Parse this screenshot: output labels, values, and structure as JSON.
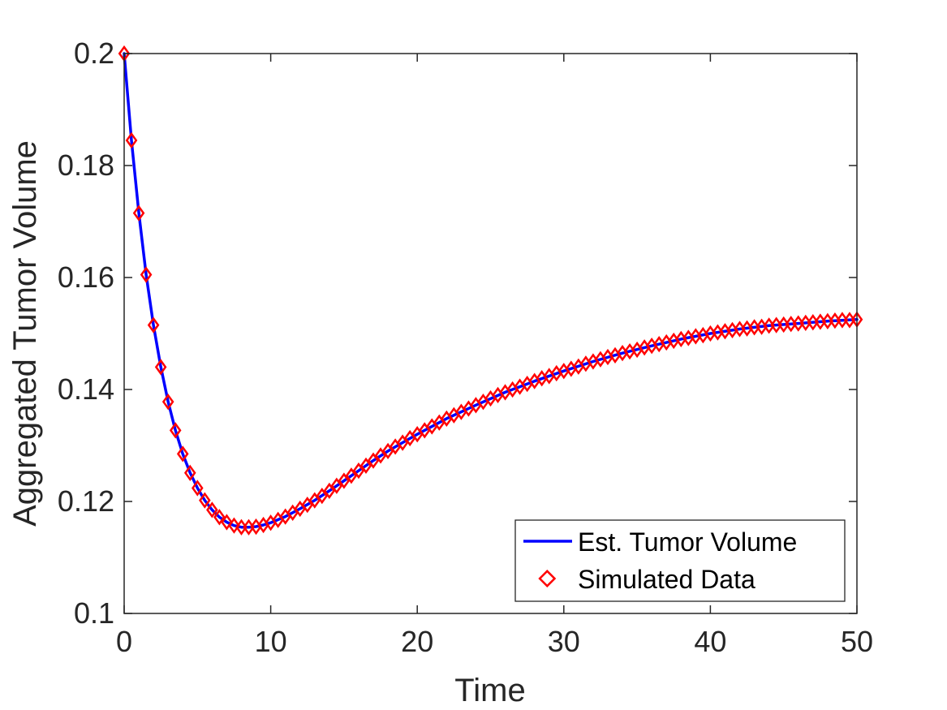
{
  "chart_data": {
    "type": "line",
    "title": "",
    "xlabel": "Time",
    "ylabel": "Aggregated Tumor Volume",
    "xlim": [
      0,
      50
    ],
    "ylim": [
      0.1,
      0.2
    ],
    "xticks": [
      "0",
      "10",
      "20",
      "30",
      "40",
      "50"
    ],
    "yticks": [
      "0.1",
      "0.12",
      "0.14",
      "0.16",
      "0.18",
      "0.2"
    ],
    "grid": false,
    "legend_position": "bottom-right",
    "series": [
      {
        "name": "Est. Tumor Volume",
        "style": "line",
        "color": "#0000ff",
        "x": [
          0,
          0.5,
          1,
          1.5,
          2,
          2.5,
          3,
          3.5,
          4,
          4.5,
          5,
          5.5,
          6,
          6.5,
          7,
          7.5,
          8,
          8.5,
          9,
          9.5,
          10,
          11,
          12,
          13,
          14,
          15,
          16,
          17,
          18,
          19,
          20,
          22,
          24,
          26,
          28,
          30,
          32,
          34,
          36,
          38,
          40,
          42,
          44,
          46,
          48,
          50
        ],
        "y": [
          0.2,
          0.1845,
          0.1715,
          0.1605,
          0.1515,
          0.144,
          0.1378,
          0.1327,
          0.1285,
          0.1251,
          0.1224,
          0.1202,
          0.1185,
          0.1172,
          0.1163,
          0.1157,
          0.1154,
          0.1154,
          0.1155,
          0.1158,
          0.1162,
          0.1173,
          0.1187,
          0.1202,
          0.1219,
          0.1237,
          0.1255,
          0.1273,
          0.129,
          0.1305,
          0.132,
          0.1348,
          0.1372,
          0.1395,
          0.1415,
          0.1433,
          0.145,
          0.1465,
          0.1478,
          0.149,
          0.15,
          0.1508,
          0.1514,
          0.1518,
          0.1522,
          0.1525
        ]
      },
      {
        "name": "Simulated Data",
        "style": "marker-diamond",
        "color": "#ff0000",
        "x": [
          0,
          0.5,
          1,
          1.5,
          2,
          2.5,
          3,
          3.5,
          4,
          4.5,
          5,
          5.5,
          6,
          6.5,
          7,
          7.5,
          8,
          8.5,
          9,
          9.5,
          10,
          10.5,
          11,
          11.5,
          12,
          12.5,
          13,
          13.5,
          14,
          14.5,
          15,
          15.5,
          16,
          16.5,
          17,
          17.5,
          18,
          18.5,
          19,
          19.5,
          20,
          20.5,
          21,
          21.5,
          22,
          22.5,
          23,
          23.5,
          24,
          24.5,
          25,
          25.5,
          26,
          26.5,
          27,
          27.5,
          28,
          28.5,
          29,
          29.5,
          30,
          30.5,
          31,
          31.5,
          32,
          32.5,
          33,
          33.5,
          34,
          34.5,
          35,
          35.5,
          36,
          36.5,
          37,
          37.5,
          38,
          38.5,
          39,
          39.5,
          40,
          40.5,
          41,
          41.5,
          42,
          42.5,
          43,
          43.5,
          44,
          44.5,
          45,
          45.5,
          46,
          46.5,
          47,
          47.5,
          48,
          48.5,
          49,
          49.5,
          50
        ],
        "y": [
          0.2,
          0.1845,
          0.1715,
          0.1605,
          0.1515,
          0.144,
          0.1378,
          0.1327,
          0.1285,
          0.1251,
          0.1224,
          0.1202,
          0.1185,
          0.1172,
          0.1163,
          0.1157,
          0.1154,
          0.1154,
          0.1155,
          0.1158,
          0.1162,
          0.1167,
          0.1173,
          0.118,
          0.1187,
          0.1194,
          0.1202,
          0.121,
          0.1219,
          0.1228,
          0.1237,
          0.1246,
          0.1255,
          0.1264,
          0.1273,
          0.1282,
          0.129,
          0.1298,
          0.1305,
          0.1313,
          0.132,
          0.1327,
          0.1334,
          0.1341,
          0.1348,
          0.1354,
          0.136,
          0.1366,
          0.1372,
          0.1378,
          0.1384,
          0.139,
          0.1395,
          0.14,
          0.1405,
          0.141,
          0.1415,
          0.142,
          0.1424,
          0.1429,
          0.1433,
          0.1437,
          0.1441,
          0.1446,
          0.145,
          0.1454,
          0.1458,
          0.1461,
          0.1465,
          0.1468,
          0.1471,
          0.1475,
          0.1478,
          0.1481,
          0.1484,
          0.1487,
          0.149,
          0.1492,
          0.1495,
          0.1497,
          0.15,
          0.1502,
          0.1504,
          0.1506,
          0.1508,
          0.1509,
          0.1511,
          0.1512,
          0.1514,
          0.1515,
          0.1516,
          0.1517,
          0.1518,
          0.1519,
          0.152,
          0.1521,
          0.1522,
          0.1523,
          0.1524,
          0.1524,
          0.1525
        ]
      }
    ]
  }
}
